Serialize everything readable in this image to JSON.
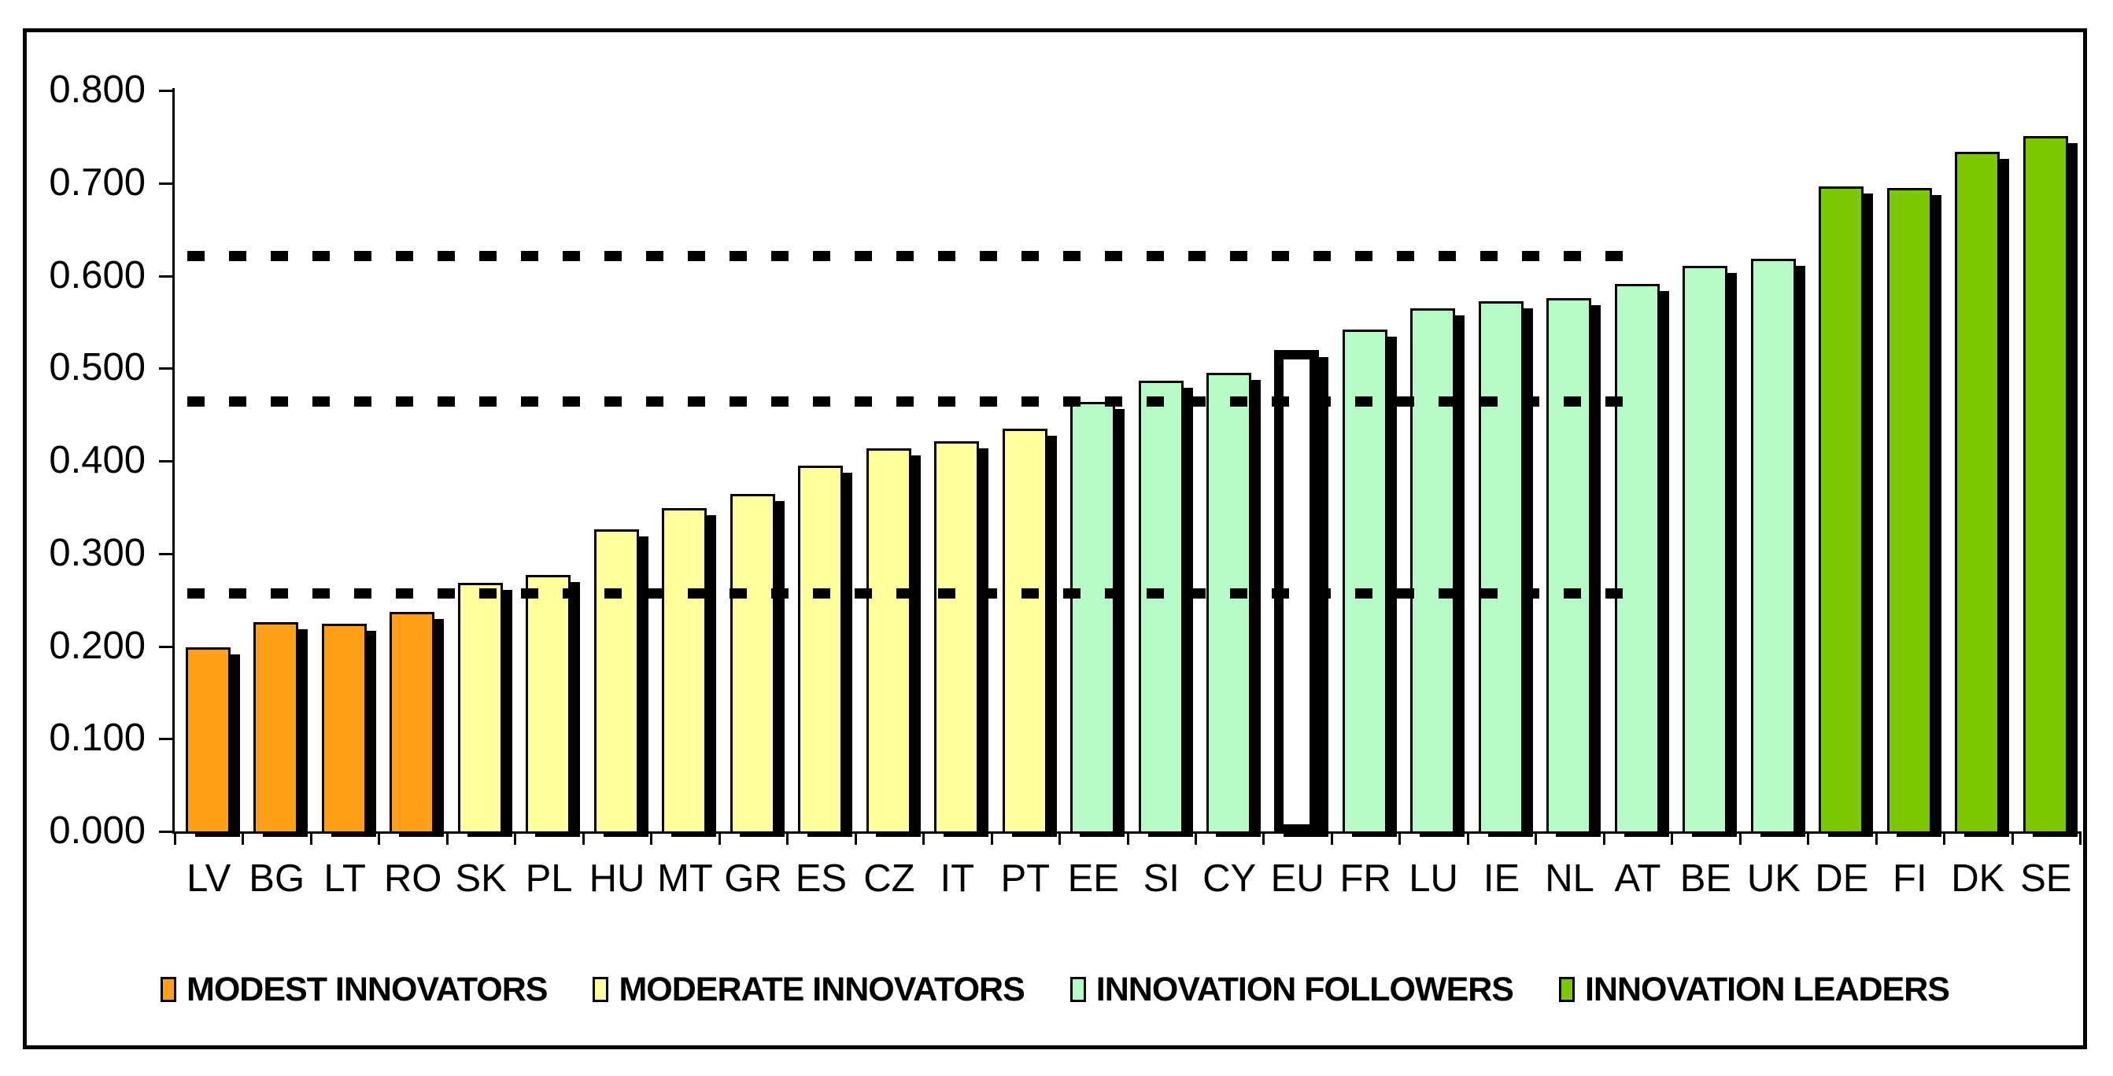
{
  "chart_data": {
    "type": "bar",
    "title": "",
    "xlabel": "",
    "ylabel": "",
    "ylim": [
      0.0,
      0.8
    ],
    "ytick_step": 0.1,
    "ytick_labels": [
      "0.000",
      "0.100",
      "0.200",
      "0.300",
      "0.400",
      "0.500",
      "0.600",
      "0.700",
      "0.800"
    ],
    "grid": false,
    "legend_position": "bottom",
    "categories": [
      "LV",
      "BG",
      "LT",
      "RO",
      "SK",
      "PL",
      "HU",
      "MT",
      "GR",
      "ES",
      "CZ",
      "IT",
      "PT",
      "EE",
      "SI",
      "CY",
      "EU",
      "FR",
      "LU",
      "IE",
      "NL",
      "AT",
      "BE",
      "UK",
      "DE",
      "FI",
      "DK",
      "SE"
    ],
    "values": [
      0.199,
      0.226,
      0.224,
      0.237,
      0.268,
      0.277,
      0.326,
      0.349,
      0.364,
      0.395,
      0.414,
      0.421,
      0.435,
      0.464,
      0.487,
      0.495,
      0.52,
      0.542,
      0.565,
      0.572,
      0.576,
      0.591,
      0.611,
      0.618,
      0.696,
      0.695,
      0.734,
      0.751
    ],
    "bar_groups": [
      "modest",
      "modest",
      "modest",
      "modest",
      "moderate",
      "moderate",
      "moderate",
      "moderate",
      "moderate",
      "moderate",
      "moderate",
      "moderate",
      "moderate",
      "followers",
      "followers",
      "followers",
      "followers",
      "followers",
      "followers",
      "followers",
      "followers",
      "followers",
      "followers",
      "followers",
      "leaders",
      "leaders",
      "leaders",
      "leaders"
    ],
    "groups": [
      {
        "key": "modest",
        "label": "MODEST INNOVATORS",
        "color": "#FFA018"
      },
      {
        "key": "moderate",
        "label": "MODERATE INNOVATORS",
        "color": "#FFFF9E"
      },
      {
        "key": "followers",
        "label": "INNOVATION FOLLOWERS",
        "color": "#B6FCC8"
      },
      {
        "key": "leaders",
        "label": "INNOVATION LEADERS",
        "color": "#7CC800"
      }
    ],
    "highlighted_category": "EU",
    "highlight_fill": "#FFFFFF",
    "bar_border_color": "#000000",
    "shadow_color": "#000000",
    "threshold_lines": {
      "style": "dashed",
      "color": "#000000",
      "values": [
        0.621,
        0.464,
        0.257
      ],
      "x_end_fraction": 0.76
    }
  }
}
